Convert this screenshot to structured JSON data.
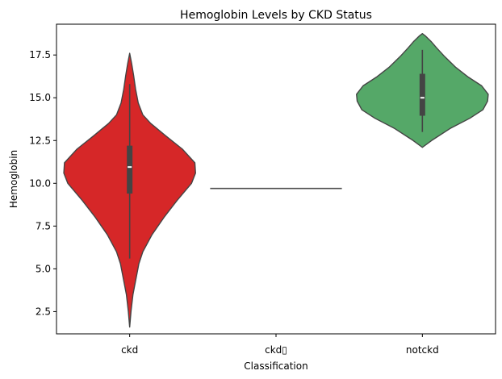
{
  "chart_data": {
    "type": "violin",
    "title": "Hemoglobin Levels by CKD Status",
    "xlabel": "Classification",
    "ylabel": "Hemoglobin",
    "categories": [
      "ckd",
      "ckd\t",
      "notckd"
    ],
    "category_labels": [
      "ckd",
      "ckd▯",
      "notckd"
    ],
    "ylim": [
      1.2,
      19.3
    ],
    "yticks": [
      2.5,
      5.0,
      7.5,
      10.0,
      12.5,
      15.0,
      17.5
    ],
    "ytick_labels": [
      "2.5",
      "5.0",
      "7.5",
      "10.0",
      "12.5",
      "15.0",
      "17.5"
    ],
    "grid": false,
    "series": [
      {
        "category": "ckd",
        "color": "#d62728",
        "density": [
          [
            1.6,
            0.0
          ],
          [
            2.5,
            0.02
          ],
          [
            3.5,
            0.05
          ],
          [
            4.5,
            0.1
          ],
          [
            5.3,
            0.14
          ],
          [
            6.0,
            0.2
          ],
          [
            7.0,
            0.34
          ],
          [
            8.0,
            0.52
          ],
          [
            9.0,
            0.72
          ],
          [
            10.0,
            0.94
          ],
          [
            10.6,
            1.0
          ],
          [
            11.2,
            0.99
          ],
          [
            12.0,
            0.8
          ],
          [
            12.8,
            0.54
          ],
          [
            13.5,
            0.32
          ],
          [
            14.0,
            0.2
          ],
          [
            14.7,
            0.13
          ],
          [
            15.5,
            0.09
          ],
          [
            16.3,
            0.06
          ],
          [
            17.0,
            0.03
          ],
          [
            17.6,
            0.0
          ]
        ],
        "half_width": 0.45,
        "q1": 9.4,
        "median": 10.95,
        "q3": 12.2,
        "whisker_low": 5.6,
        "whisker_high": 15.8
      },
      {
        "category": "ckd\t",
        "color": "#4c4c4c",
        "single_value": 9.7,
        "half_width": 0.45
      },
      {
        "category": "notckd",
        "color": "#55a868",
        "density": [
          [
            12.1,
            0.0
          ],
          [
            12.5,
            0.14
          ],
          [
            13.2,
            0.42
          ],
          [
            13.8,
            0.72
          ],
          [
            14.3,
            0.92
          ],
          [
            14.8,
            0.99
          ],
          [
            15.2,
            1.0
          ],
          [
            15.7,
            0.9
          ],
          [
            16.2,
            0.7
          ],
          [
            16.8,
            0.5
          ],
          [
            17.4,
            0.34
          ],
          [
            17.9,
            0.22
          ],
          [
            18.3,
            0.13
          ],
          [
            18.6,
            0.05
          ],
          [
            18.75,
            0.0
          ]
        ],
        "half_width": 0.45,
        "q1": 13.95,
        "median": 15.0,
        "q3": 16.4,
        "whisker_low": 13.0,
        "whisker_high": 17.8
      }
    ]
  }
}
